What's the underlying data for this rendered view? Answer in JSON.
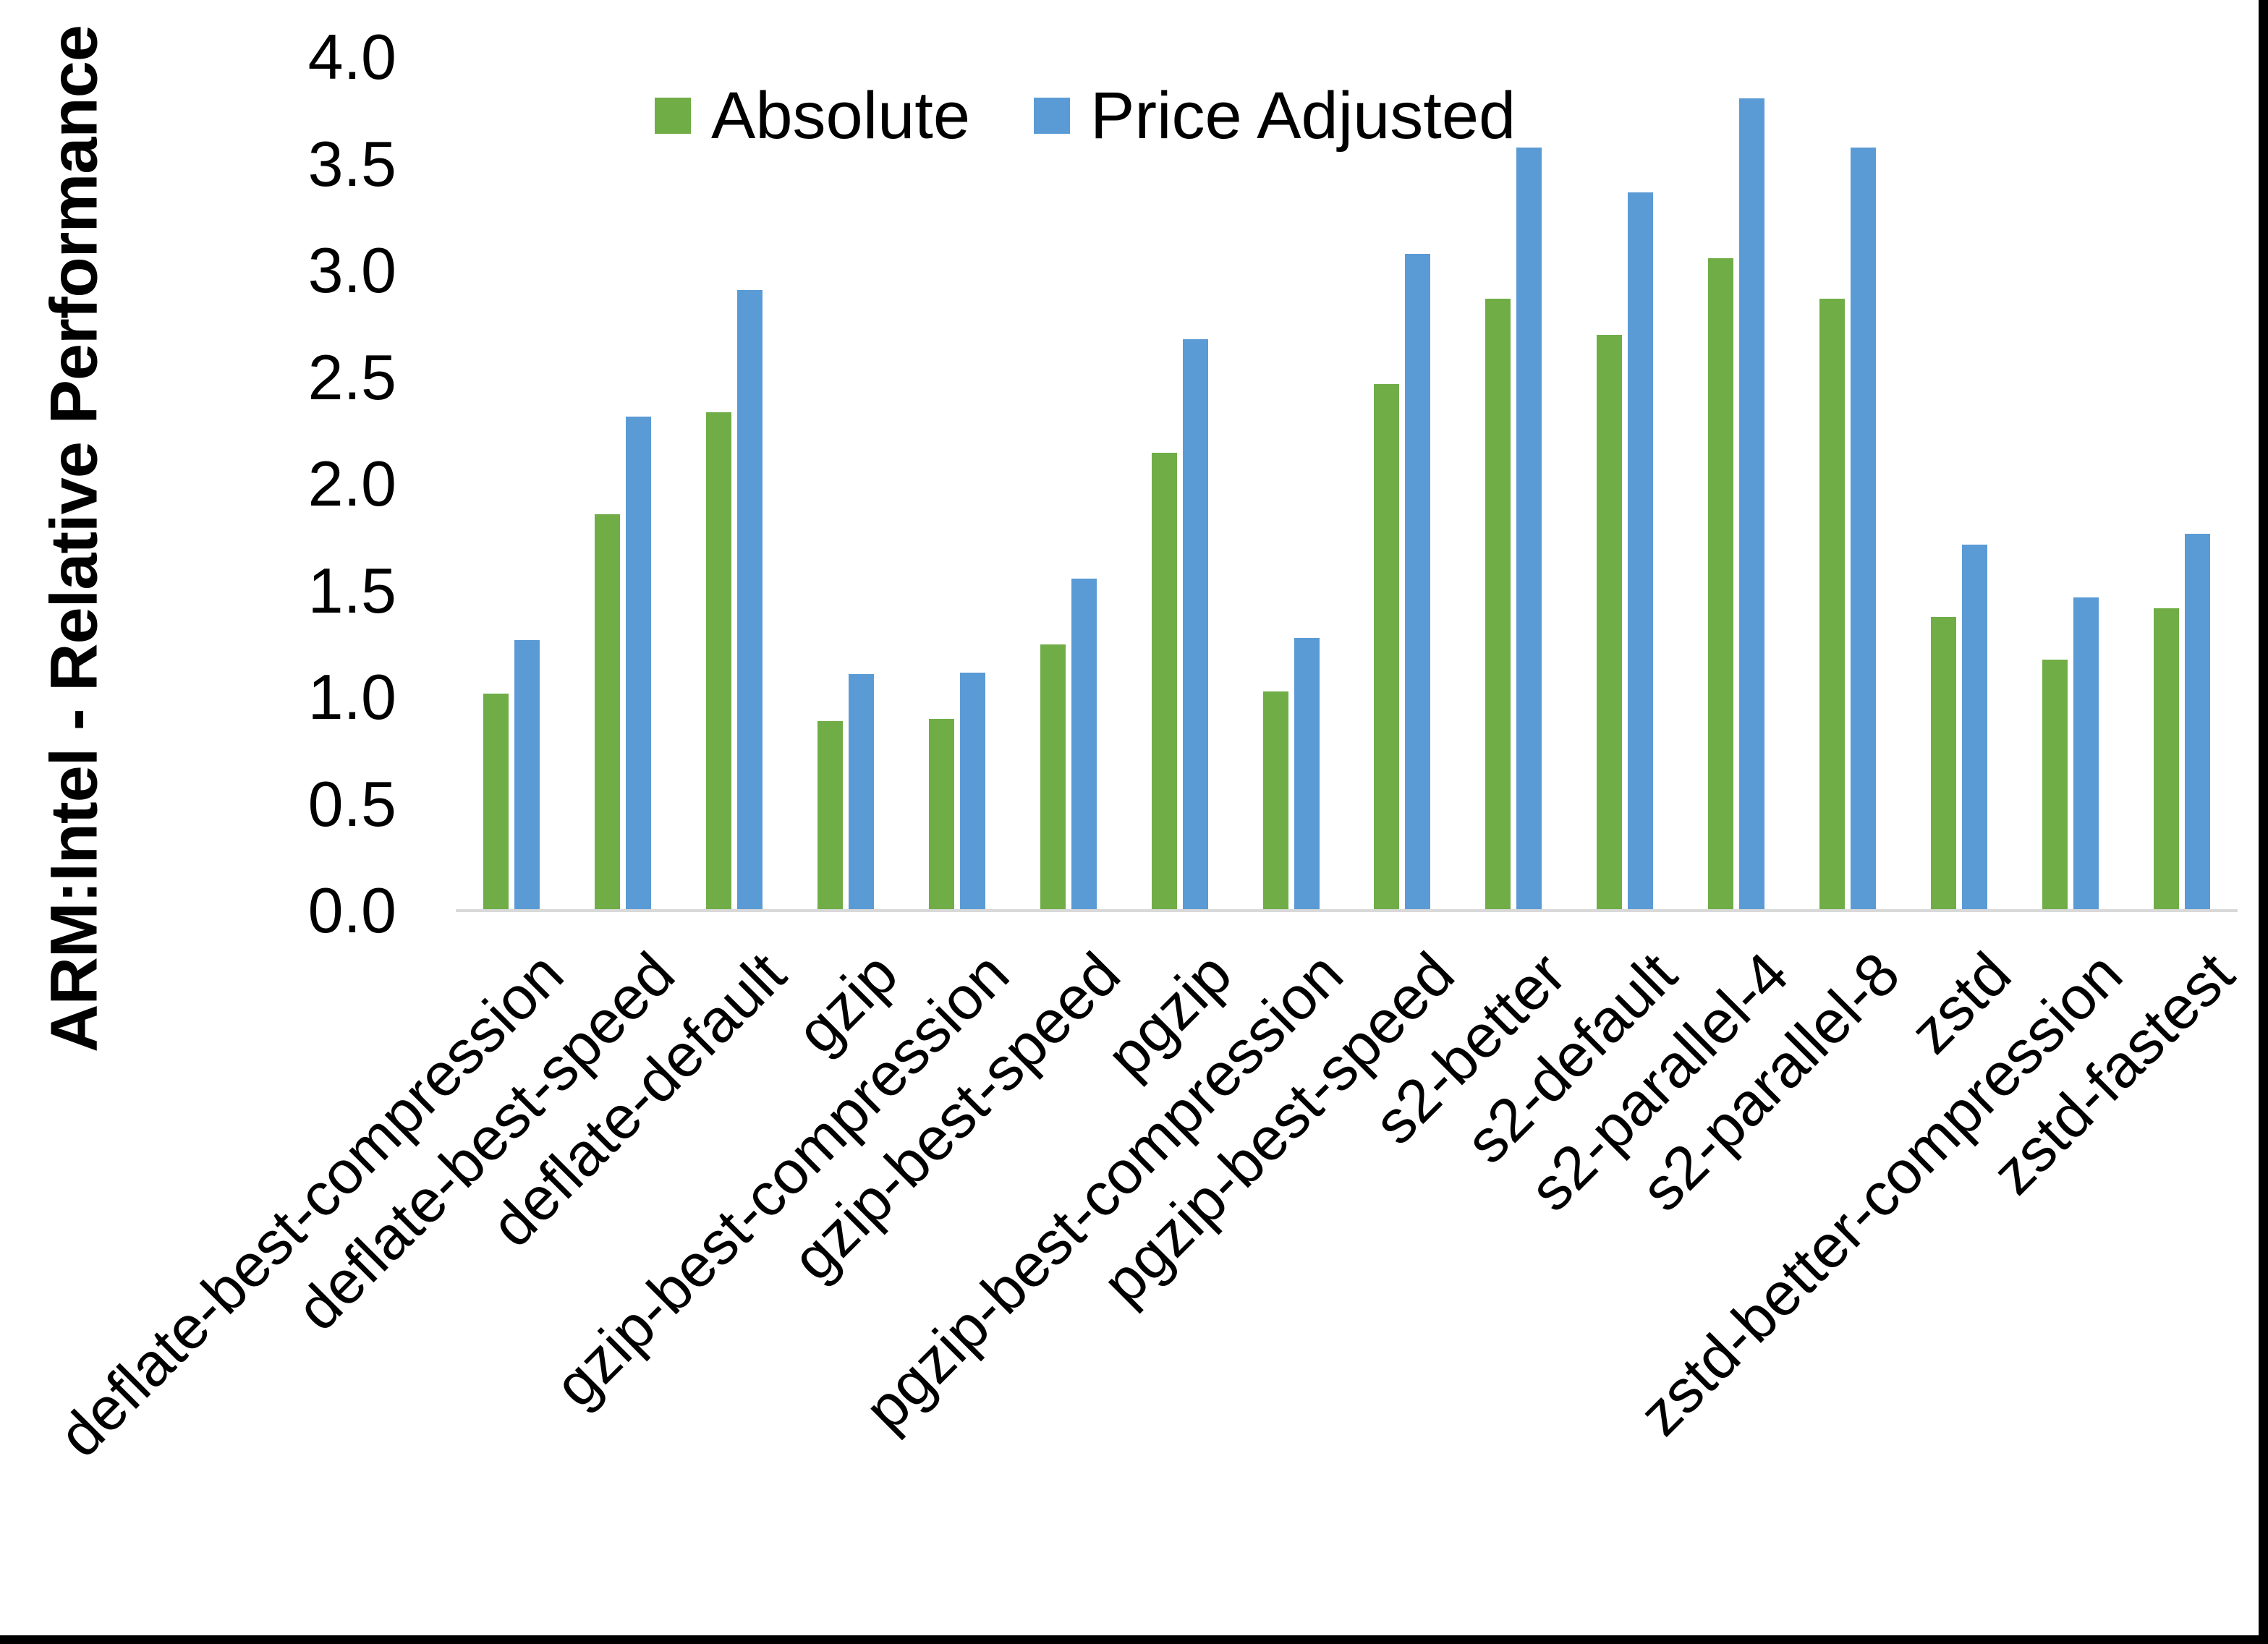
{
  "figure": {
    "background": "#ffffff",
    "border_color": "#000000",
    "axis_line_color": "#D9D9D9",
    "text_color": "#000000"
  },
  "legend": {
    "position": "top-center",
    "items": [
      {
        "label": "Absolute",
        "color": "#70AD47"
      },
      {
        "label": "Price Adjusted",
        "color": "#5B9BD5"
      }
    ]
  },
  "chart_data": {
    "type": "bar",
    "title": "",
    "xlabel": "",
    "ylabel": "ARM:Intel - Relative Performance",
    "ylim": [
      0.0,
      4.0
    ],
    "ytick_step": 0.5,
    "ytick_labels": [
      "0.0",
      "0.5",
      "1.0",
      "1.5",
      "2.0",
      "2.5",
      "3.0",
      "3.5",
      "4.0"
    ],
    "grid": false,
    "legend_position": "top",
    "categories": [
      "deflate-best-compression",
      "deflate-best-speed",
      "deflate-default",
      "gzip",
      "gzip-best-compression",
      "gzip-best-speed",
      "pgzip",
      "pgzip-best-compression",
      "pgzip-best-speed",
      "s2-better",
      "s2-default",
      "s2-parallel-4",
      "s2-parallel-8",
      "zstd",
      "zstd-better-compression",
      "zstd-fastest"
    ],
    "series": [
      {
        "name": "Absolute",
        "color": "#70AD47",
        "values": [
          1.01,
          1.85,
          2.33,
          0.88,
          0.89,
          1.24,
          2.14,
          1.02,
          2.46,
          2.86,
          2.69,
          3.05,
          2.86,
          1.37,
          1.17,
          1.41
        ]
      },
      {
        "name": "Price Adjusted",
        "color": "#5B9BD5",
        "values": [
          1.26,
          2.31,
          2.9,
          1.1,
          1.11,
          1.55,
          2.67,
          1.27,
          3.07,
          3.57,
          3.36,
          3.8,
          3.57,
          1.71,
          1.46,
          1.76
        ]
      }
    ]
  }
}
